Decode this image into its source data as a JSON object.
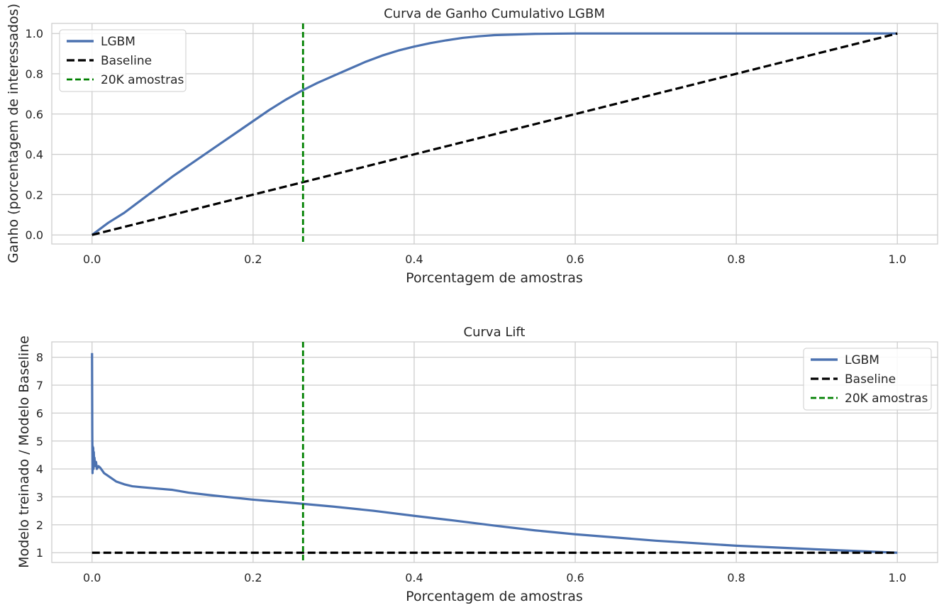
{
  "chart_data": [
    {
      "type": "line",
      "title": "Curva de Ganho Cumulativo LGBM",
      "xlabel": "Porcentagem de amostras",
      "ylabel": "Ganho (porcentagem de interessados)",
      "xlim": [
        -0.05,
        1.05
      ],
      "ylim": [
        -0.045,
        1.05
      ],
      "xticks": [
        "0.0",
        "0.2",
        "0.4",
        "0.6",
        "0.8",
        "1.0"
      ],
      "yticks": [
        "0.0",
        "0.2",
        "0.4",
        "0.6",
        "0.8",
        "1.0"
      ],
      "grid": true,
      "legend_position": "upper-left",
      "series": [
        {
          "name": "LGBM",
          "color": "#4c72b0",
          "style": "solid",
          "x": [
            0,
            0.01,
            0.02,
            0.04,
            0.06,
            0.08,
            0.1,
            0.12,
            0.14,
            0.16,
            0.18,
            0.2,
            0.22,
            0.24,
            0.26,
            0.28,
            0.3,
            0.32,
            0.34,
            0.36,
            0.38,
            0.4,
            0.42,
            0.44,
            0.46,
            0.48,
            0.5,
            0.55,
            0.6,
            0.7,
            0.8,
            0.9,
            1.0
          ],
          "y": [
            0,
            0.03,
            0.06,
            0.11,
            0.17,
            0.23,
            0.29,
            0.345,
            0.4,
            0.455,
            0.51,
            0.565,
            0.62,
            0.67,
            0.715,
            0.755,
            0.79,
            0.825,
            0.86,
            0.89,
            0.915,
            0.935,
            0.952,
            0.966,
            0.978,
            0.986,
            0.992,
            0.998,
            1.0,
            1.0,
            1.0,
            1.0,
            1.0
          ]
        },
        {
          "name": "Baseline",
          "color": "#000000",
          "style": "dashed",
          "x": [
            0,
            1
          ],
          "y": [
            0,
            1
          ]
        }
      ],
      "vlines": [
        {
          "name": "20K amostras",
          "x": 0.262,
          "color": "#008000",
          "style": "dashed"
        }
      ]
    },
    {
      "type": "line",
      "title": "Curva Lift",
      "xlabel": "Porcentagem de amostras",
      "ylabel": "Modelo treinado / Modelo Baseline",
      "xlim": [
        -0.05,
        1.05
      ],
      "ylim": [
        0.65,
        8.55
      ],
      "xticks": [
        "0.0",
        "0.2",
        "0.4",
        "0.6",
        "0.8",
        "1.0"
      ],
      "yticks": [
        "1",
        "2",
        "3",
        "4",
        "5",
        "6",
        "7",
        "8"
      ],
      "grid": true,
      "legend_position": "upper-right",
      "series": [
        {
          "name": "LGBM",
          "color": "#4c72b0",
          "style": "solid",
          "x": [
            0,
            0.0003,
            0.0006,
            0.0009,
            0.0012,
            0.0015,
            0.0018,
            0.0022,
            0.0026,
            0.003,
            0.004,
            0.005,
            0.006,
            0.008,
            0.01,
            0.015,
            0.02,
            0.03,
            0.04,
            0.05,
            0.06,
            0.08,
            0.1,
            0.12,
            0.15,
            0.2,
            0.25,
            0.3,
            0.35,
            0.4,
            0.45,
            0.5,
            0.55,
            0.6,
            0.7,
            0.8,
            0.9,
            1.0
          ],
          "y": [
            8.15,
            5.3,
            3.85,
            4.8,
            4.1,
            4.75,
            4.0,
            4.6,
            4.2,
            4.4,
            4.1,
            4.25,
            4.0,
            4.1,
            4.05,
            3.85,
            3.75,
            3.55,
            3.45,
            3.38,
            3.35,
            3.3,
            3.25,
            3.15,
            3.05,
            2.9,
            2.78,
            2.65,
            2.5,
            2.32,
            2.15,
            1.97,
            1.8,
            1.66,
            1.43,
            1.25,
            1.12,
            1.0
          ]
        },
        {
          "name": "Baseline",
          "color": "#000000",
          "style": "dashed",
          "x": [
            0,
            1
          ],
          "y": [
            1,
            1
          ]
        }
      ],
      "vlines": [
        {
          "name": "20K amostras",
          "x": 0.262,
          "color": "#008000",
          "style": "dashed"
        }
      ]
    }
  ]
}
